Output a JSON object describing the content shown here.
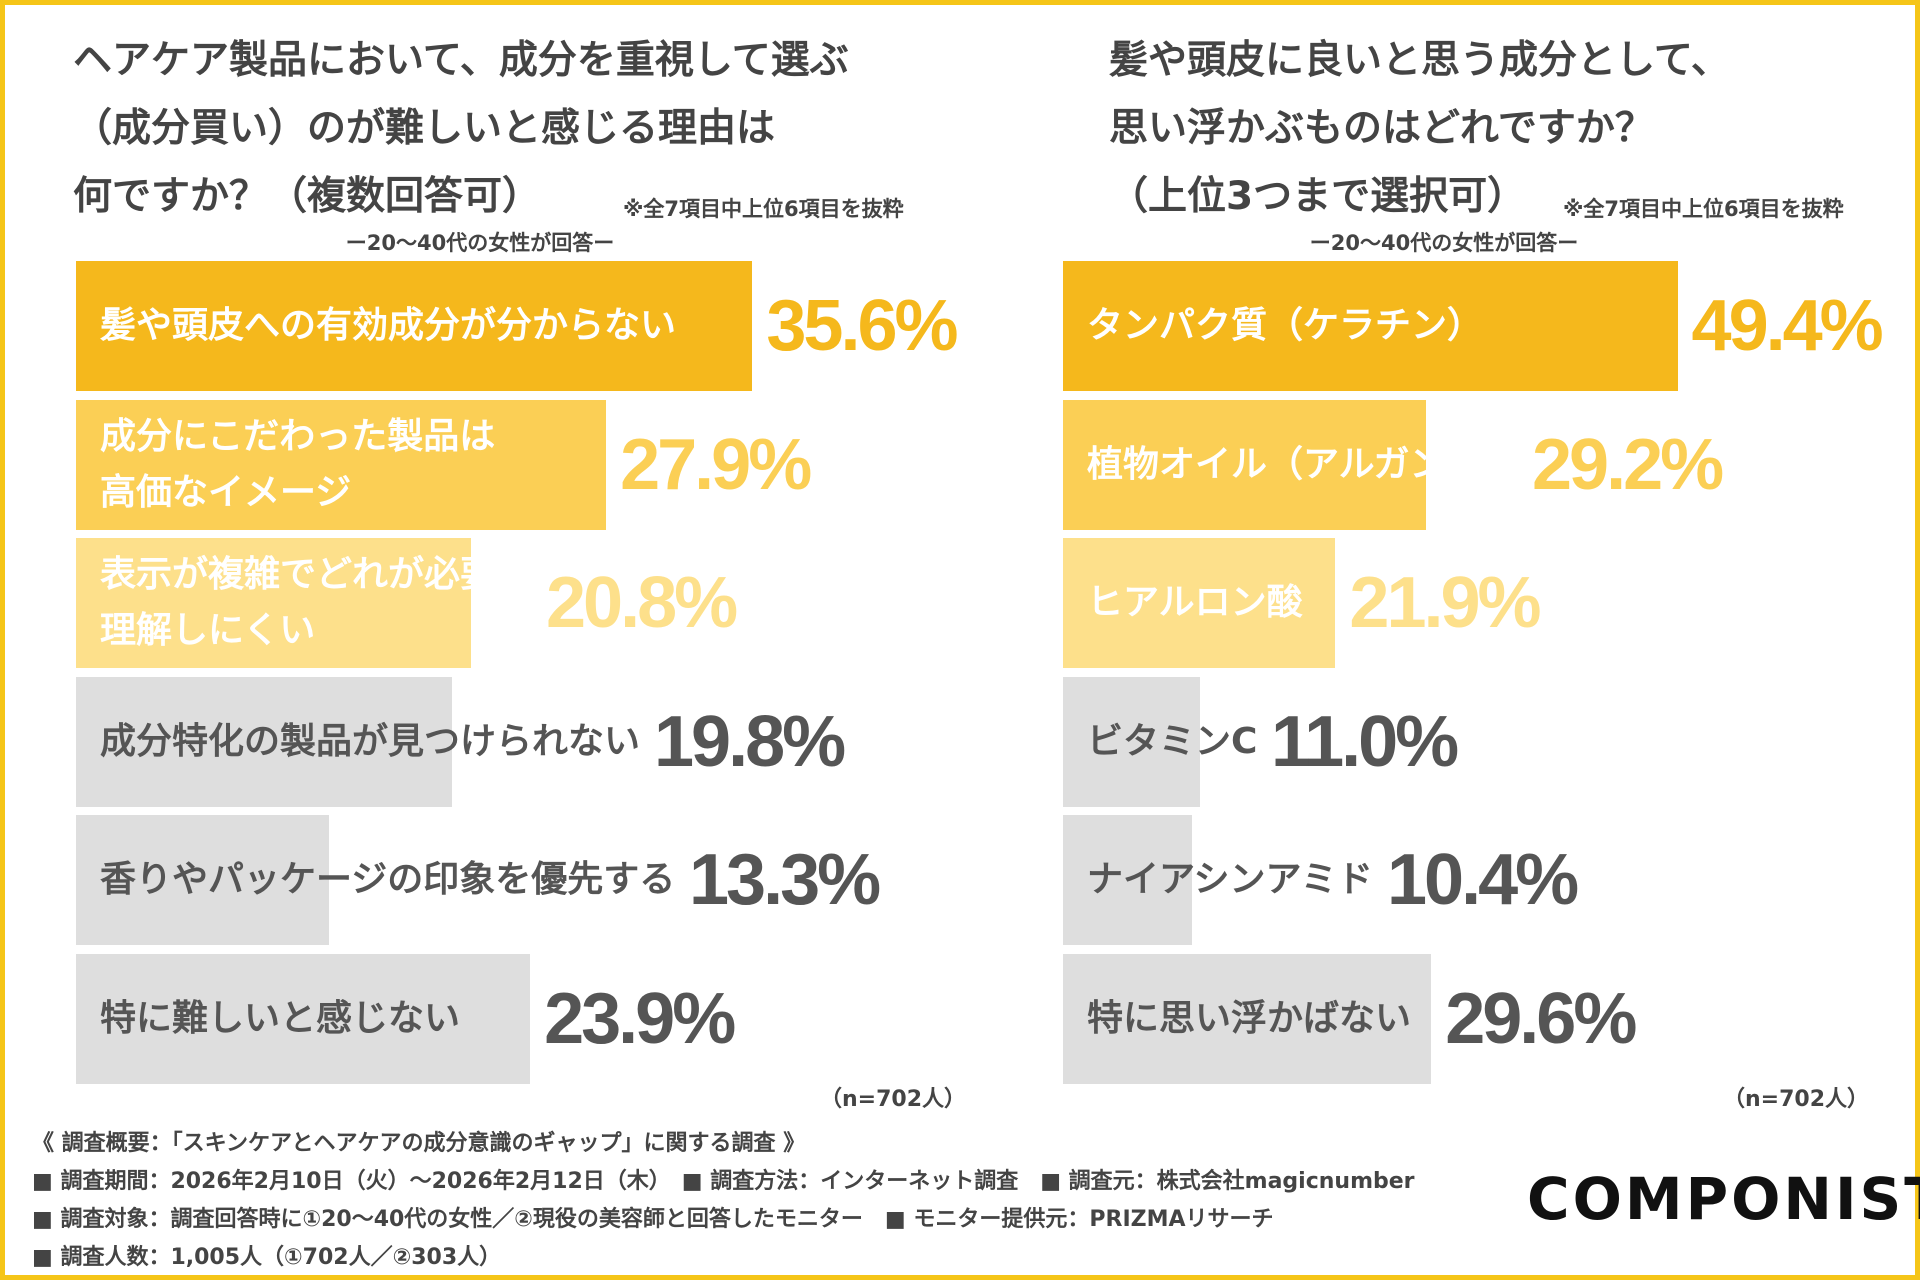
{
  "chart_data": [
    {
      "type": "bar",
      "orientation": "horizontal",
      "title": [
        "ヘアケア製品において、成分を重視して選ぶ",
        "（成分買い）のが難しいと感じる理由は",
        "何ですか？（複数回答可）"
      ],
      "note": "※全7項目中上位6項目を抜粋",
      "subtitle": "ー20〜40代の女性が回答ー",
      "categories": [
        "髪や頭皮への有効成分が分からない",
        "成分にこだわった製品は\n高価なイメージ",
        "表示が複雑でどれが必要か\n理解しにくい",
        "成分特化の製品が見つけられない",
        "香りやパッケージの印象を優先する",
        "特に難しいと感じない"
      ],
      "values": [
        35.6,
        27.9,
        20.8,
        19.8,
        13.3,
        23.9
      ],
      "value_labels": [
        "35.6%",
        "27.9%",
        "20.8%",
        "19.8%",
        "13.3%",
        "23.9%"
      ],
      "colors": [
        "#f5b81c",
        "#fbcf55",
        "#fde08b",
        "#dedede",
        "#dedede",
        "#dedede"
      ],
      "value_label_colors": [
        "#f5b81c",
        "#fbcf55",
        "#fde08b",
        "#555555",
        "#555555",
        "#555555"
      ],
      "label_colors": [
        "#ffffff",
        "#ffffff",
        "#ffffff",
        "#555555",
        "#555555",
        "#555555"
      ],
      "sample_note": "（n=702人）"
    },
    {
      "type": "bar",
      "orientation": "horizontal",
      "title": [
        "髪や頭皮に良いと思う成分として、",
        "思い浮かぶものはどれですか？",
        "（上位3つまで選択可）"
      ],
      "note": "※全7項目中上位6項目を抜粋",
      "subtitle": "ー20〜40代の女性が回答ー",
      "categories": [
        "タンパク質（ケラチン）",
        "植物オイル（アルガン等）",
        "ヒアルロン酸",
        "ビタミンC",
        "ナイアシンアミド",
        "特に思い浮かばない"
      ],
      "values": [
        49.4,
        29.2,
        21.9,
        11.0,
        10.4,
        29.6
      ],
      "value_labels": [
        "49.4%",
        "29.2%",
        "21.9%",
        "11.0%",
        "10.4%",
        "29.6%"
      ],
      "colors": [
        "#f5b81c",
        "#fbcf55",
        "#fde08b",
        "#dedede",
        "#dedede",
        "#dedede"
      ],
      "value_label_colors": [
        "#f5b81c",
        "#fbcf55",
        "#fde08b",
        "#555555",
        "#555555",
        "#555555"
      ],
      "label_colors": [
        "#ffffff",
        "#ffffff",
        "#ffffff",
        "#555555",
        "#555555",
        "#555555"
      ],
      "sample_note": "（n=702人）"
    }
  ],
  "footer": {
    "lines": [
      "《 調査概要：「スキンケアとヘアケアの成分意識のギャップ」に関する調査 》",
      "■ 調査期間：2026年2月10日（火）～2026年2月12日（木）　■ 調査方法：インターネット調査　■ 調査元：株式会社magicnumber",
      "■ 調査対象：調査回答時に①20〜40代の女性／②現役の美容師と回答したモニター　■ モニター提供元：PRIZMAリサーチ",
      "■ 調査人数：1,005人（①702人／②303人）"
    ]
  },
  "logo": "COMPONIST"
}
